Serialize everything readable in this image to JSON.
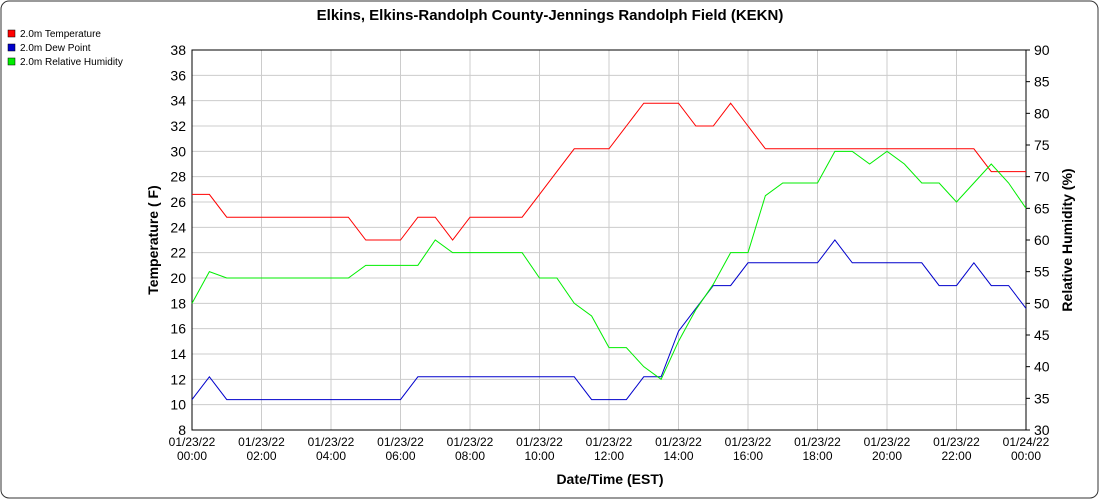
{
  "chart_data": {
    "type": "line",
    "title": "Elkins, Elkins-Randolph County-Jennings Randolph Field (KEKN)",
    "x_label": "Date/Time (EST)",
    "y_label": "Temperature ( F)",
    "y2_label": "Relative Humidity (%)",
    "x": [
      0,
      0.5,
      1,
      1.5,
      2,
      2.5,
      3,
      3.5,
      4,
      4.5,
      5,
      5.5,
      6,
      6.5,
      7,
      7.5,
      8,
      8.5,
      9,
      9.5,
      10,
      10.5,
      11,
      11.5,
      12,
      12.5,
      13,
      13.5,
      14,
      14.5,
      15,
      15.5,
      16,
      16.5,
      17,
      17.5,
      18,
      18.5,
      19,
      19.5,
      20,
      20.5,
      21,
      21.5,
      22,
      22.5,
      23,
      23.5,
      24
    ],
    "xlim": [
      0,
      24
    ],
    "xticks": [
      {
        "value": 0,
        "label": "01/23/22 00:00"
      },
      {
        "value": 2,
        "label": "01/23/22 02:00"
      },
      {
        "value": 4,
        "label": "01/23/22 04:00"
      },
      {
        "value": 6,
        "label": "01/23/22 06:00"
      },
      {
        "value": 8,
        "label": "01/23/22 08:00"
      },
      {
        "value": 10,
        "label": "01/23/22 10:00"
      },
      {
        "value": 12,
        "label": "01/23/22 12:00"
      },
      {
        "value": 14,
        "label": "01/23/22 14:00"
      },
      {
        "value": 16,
        "label": "01/23/22 16:00"
      },
      {
        "value": 18,
        "label": "01/23/22 18:00"
      },
      {
        "value": 20,
        "label": "01/23/22 20:00"
      },
      {
        "value": 22,
        "label": "01/23/22 22:00"
      },
      {
        "value": 24,
        "label": "01/24/22 00:00"
      }
    ],
    "ylim": [
      8,
      38
    ],
    "yticks": [
      8,
      10,
      12,
      14,
      16,
      18,
      20,
      22,
      24,
      26,
      28,
      30,
      32,
      34,
      36,
      38
    ],
    "y2lim": [
      30,
      90
    ],
    "y2ticks": [
      30,
      35,
      40,
      45,
      50,
      55,
      60,
      65,
      70,
      75,
      80,
      85,
      90
    ],
    "grid": true,
    "series": [
      {
        "name": "2.0m Temperature",
        "color": "#ff0000",
        "values": [
          26.6,
          26.6,
          24.8,
          24.8,
          24.8,
          24.8,
          24.8,
          24.8,
          24.8,
          24.8,
          23,
          23,
          23,
          24.8,
          24.8,
          23,
          24.8,
          24.8,
          24.8,
          24.8,
          26.6,
          28.4,
          30.2,
          30.2,
          30.2,
          32,
          33.8,
          33.8,
          33.8,
          32,
          32,
          33.8,
          32,
          30.2,
          30.2,
          30.2,
          30.2,
          30.2,
          30.2,
          30.2,
          30.2,
          30.2,
          30.2,
          30.2,
          30.2,
          30.2,
          28.4,
          28.4,
          28.4
        ]
      },
      {
        "name": "2.0m Dew Point",
        "color": "#0000cc",
        "values": [
          10.4,
          12.2,
          10.4,
          10.4,
          10.4,
          10.4,
          10.4,
          10.4,
          10.4,
          10.4,
          10.4,
          10.4,
          10.4,
          12.2,
          12.2,
          12.2,
          12.2,
          12.2,
          12.2,
          12.2,
          12.2,
          12.2,
          12.2,
          10.4,
          10.4,
          10.4,
          12.2,
          12.2,
          15.8,
          17.6,
          19.4,
          19.4,
          21.2,
          21.2,
          21.2,
          21.2,
          21.2,
          23,
          21.2,
          21.2,
          21.2,
          21.2,
          21.2,
          19.4,
          19.4,
          21.2,
          19.4,
          19.4,
          17.6
        ]
      },
      {
        "name": "2.0m Relative Humidity",
        "color": "#00ee00",
        "axis": "y2",
        "values": [
          50,
          55,
          54,
          54,
          54,
          54,
          54,
          54,
          54,
          54,
          56,
          56,
          56,
          56,
          60,
          58,
          58,
          58,
          58,
          58,
          54,
          54,
          50,
          48,
          43,
          43,
          40,
          38,
          44,
          49,
          53,
          58,
          58,
          67,
          69,
          69,
          69,
          74,
          74,
          72,
          74,
          72,
          69,
          69,
          66,
          69,
          72,
          69,
          65
        ]
      }
    ]
  }
}
